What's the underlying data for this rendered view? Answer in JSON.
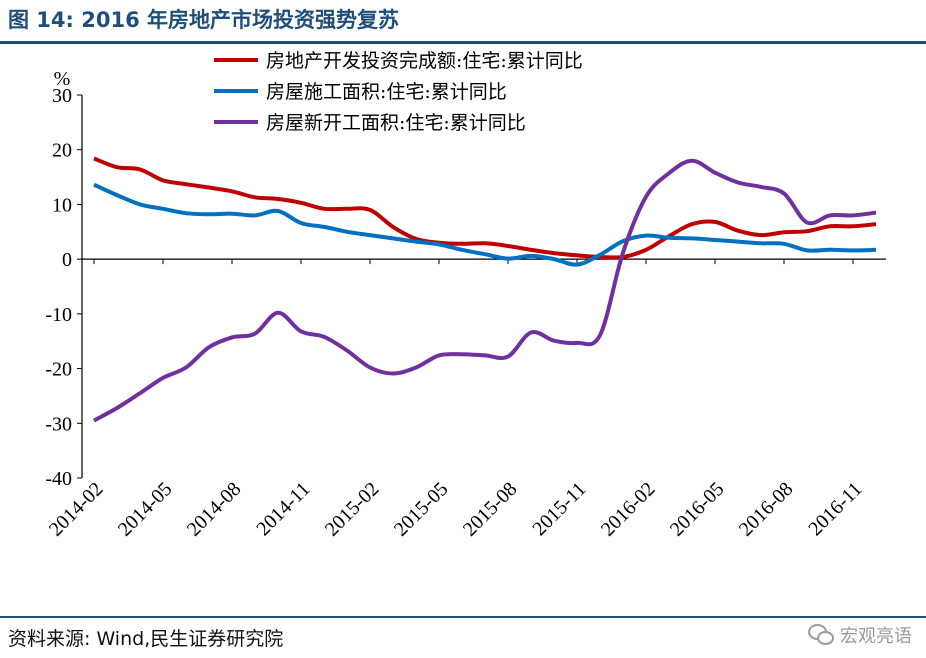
{
  "title": "图 14:  2016 年房地产市场投资强势复苏",
  "source": "资料来源:  Wind,民生证券研究院",
  "watermark": "宏观亮语",
  "chart_data": {
    "type": "line",
    "unit_label": "%",
    "ylim": [
      -40,
      30
    ],
    "yticks": [
      30,
      20,
      10,
      0,
      -10,
      -20,
      -30,
      -40
    ],
    "x": [
      "2014-02",
      "2014-03",
      "2014-04",
      "2014-05",
      "2014-06",
      "2014-07",
      "2014-08",
      "2014-09",
      "2014-10",
      "2014-11",
      "2014-12",
      "2015-01",
      "2015-02",
      "2015-03",
      "2015-04",
      "2015-05",
      "2015-06",
      "2015-07",
      "2015-08",
      "2015-09",
      "2015-10",
      "2015-11",
      "2015-12",
      "2016-01",
      "2016-02",
      "2016-03",
      "2016-04",
      "2016-05",
      "2016-06",
      "2016-07",
      "2016-08",
      "2016-09",
      "2016-10",
      "2016-11",
      "2016-12"
    ],
    "xtick_labels": [
      "2014-02",
      "2014-05",
      "2014-08",
      "2014-11",
      "2015-02",
      "2015-05",
      "2015-08",
      "2015-11",
      "2016-02",
      "2016-05",
      "2016-08",
      "2016-11"
    ],
    "legend_position": "top-center",
    "series": [
      {
        "name": "房地产开发投资完成额:住宅:累计同比",
        "color": "#c00000",
        "values": [
          18.4,
          16.8,
          16.4,
          14.4,
          13.7,
          13.1,
          12.4,
          11.3,
          11.0,
          10.3,
          9.2,
          9.2,
          9.0,
          5.9,
          3.7,
          3.0,
          2.8,
          2.9,
          2.4,
          1.7,
          1.1,
          0.7,
          0.4,
          0.4,
          1.7,
          4.2,
          6.4,
          6.8,
          5.2,
          4.4,
          4.9,
          5.1,
          6.0,
          6.0,
          6.4
        ]
      },
      {
        "name": "房屋施工面积:住宅:累计同比",
        "color": "#0070c0",
        "values": [
          13.6,
          11.7,
          10.0,
          9.2,
          8.4,
          8.2,
          8.3,
          8.0,
          8.8,
          6.6,
          5.9,
          5.0,
          4.4,
          3.8,
          3.2,
          2.7,
          1.7,
          0.9,
          0.1,
          0.6,
          0.0,
          -1.0,
          0.8,
          3.3,
          4.3,
          3.9,
          3.8,
          3.5,
          3.2,
          2.9,
          2.8,
          1.6,
          1.7,
          1.6,
          1.7
        ]
      },
      {
        "name": "房屋新开工面积:住宅:累计同比",
        "color": "#7030a0",
        "values": [
          -29.5,
          -27.2,
          -24.5,
          -21.7,
          -19.8,
          -16.1,
          -14.3,
          -13.6,
          -9.8,
          -13.2,
          -14.2,
          -16.7,
          -19.8,
          -20.9,
          -19.8,
          -17.6,
          -17.4,
          -17.6,
          -17.8,
          -13.4,
          -14.9,
          -15.3,
          -13.9,
          1.2,
          11.4,
          15.7,
          18.0,
          15.8,
          14.0,
          13.2,
          12.0,
          6.7,
          8.0,
          8.0,
          8.5
        ]
      }
    ]
  }
}
